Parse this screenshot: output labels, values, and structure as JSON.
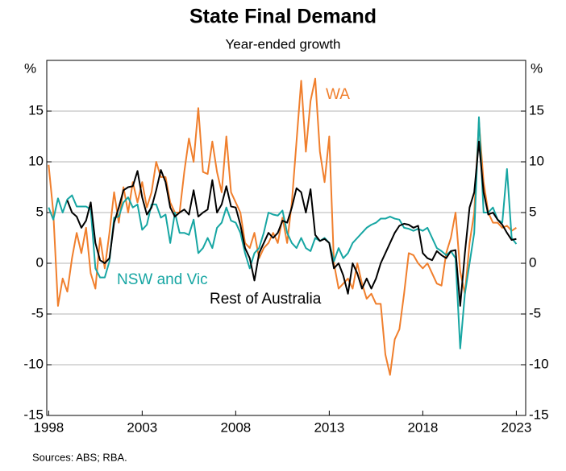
{
  "chart_data": {
    "type": "line",
    "title": "State Final Demand",
    "subtitle": "Year-ended growth",
    "y_unit": "%",
    "source": "Sources: ABS; RBA.",
    "xlim": [
      1997.9,
      2023.5
    ],
    "xticks": [
      1998,
      2003,
      2008,
      2013,
      2018,
      2023
    ],
    "ylim": [
      -15,
      20
    ],
    "yticks": [
      -15,
      -10,
      -5,
      0,
      5,
      10,
      15
    ],
    "grid": true,
    "x": [
      1998,
      1998.25,
      1998.5,
      1998.75,
      1999,
      1999.25,
      1999.5,
      1999.75,
      2000,
      2000.25,
      2000.5,
      2000.75,
      2001,
      2001.25,
      2001.5,
      2001.75,
      2002,
      2002.25,
      2002.5,
      2002.75,
      2003,
      2003.25,
      2003.5,
      2003.75,
      2004,
      2004.25,
      2004.5,
      2004.75,
      2005,
      2005.25,
      2005.5,
      2005.75,
      2006,
      2006.25,
      2006.5,
      2006.75,
      2007,
      2007.25,
      2007.5,
      2007.75,
      2008,
      2008.25,
      2008.5,
      2008.75,
      2009,
      2009.25,
      2009.5,
      2009.75,
      2010,
      2010.25,
      2010.5,
      2010.75,
      2011,
      2011.25,
      2011.5,
      2011.75,
      2012,
      2012.25,
      2012.5,
      2012.75,
      2013,
      2013.25,
      2013.5,
      2013.75,
      2014,
      2014.25,
      2014.5,
      2014.75,
      2015,
      2015.25,
      2015.5,
      2015.75,
      2016,
      2016.25,
      2016.5,
      2016.75,
      2017,
      2017.25,
      2017.5,
      2017.75,
      2018,
      2018.25,
      2018.5,
      2018.75,
      2019,
      2019.25,
      2019.5,
      2019.75,
      2020,
      2020.25,
      2020.5,
      2020.75,
      2021,
      2021.25,
      2021.5,
      2021.75,
      2022,
      2022.25,
      2022.5,
      2022.75,
      2023
    ],
    "series": [
      {
        "name": "WA",
        "color": "#f07f2d",
        "values": [
          9.7,
          5,
          -4.2,
          -1.5,
          -2.8,
          0.5,
          3,
          1,
          3.5,
          -1,
          -2.5,
          2.5,
          -0.5,
          3,
          7,
          4,
          7.5,
          5,
          8,
          6,
          8,
          5.5,
          7,
          10,
          8.5,
          8.5,
          6,
          5,
          5,
          9,
          12.3,
          10,
          15.3,
          9,
          8.8,
          12,
          9,
          7,
          12.5,
          7,
          6,
          5,
          2,
          1.5,
          3,
          0.5,
          1.5,
          2,
          3,
          2,
          4.5,
          2,
          6,
          12,
          18,
          11,
          16,
          18.2,
          11,
          8,
          12.5,
          0,
          -2.5,
          -2,
          -1.5,
          -2.5,
          0,
          -2,
          -3.5,
          -3,
          -4,
          -4,
          -9,
          -11,
          -7.5,
          -6.5,
          -3,
          1,
          0.8,
          0,
          -0.5,
          0,
          -1,
          -2,
          -2.2,
          1,
          2.5,
          5,
          -0.8,
          -3,
          2,
          5,
          14,
          8,
          5,
          4,
          4,
          3.5,
          3.7,
          3.2,
          3.5
        ]
      },
      {
        "name": "NSW and Vic",
        "color": "#17a6a3",
        "values": [
          5.5,
          4.3,
          6.4,
          5,
          6.3,
          6.7,
          5.6,
          5.6,
          5.6,
          5.3,
          -0.5,
          -1.4,
          -1.4,
          0.2,
          4.5,
          4.6,
          6,
          6.5,
          5.5,
          5.8,
          3.3,
          3.8,
          5.8,
          5.8,
          4.5,
          4.8,
          2,
          5,
          3,
          3,
          2.8,
          4.3,
          1,
          1.5,
          2.5,
          1.5,
          3.5,
          4,
          5.5,
          4.2,
          4,
          3,
          1,
          -0.5,
          1,
          1.5,
          3,
          5,
          4.8,
          4.7,
          5.2,
          3,
          2,
          1.5,
          2.5,
          1.5,
          1.2,
          2.5,
          2.2,
          2.5,
          2,
          0.2,
          1.5,
          0.5,
          1,
          2,
          2.5,
          3,
          3.5,
          3.8,
          4,
          4.4,
          4.4,
          4.6,
          4.4,
          4.3,
          3.5,
          3.4,
          3.2,
          3.4,
          3.2,
          3.5,
          2.5,
          1.5,
          1.2,
          0.8,
          1.2,
          0.5,
          -8.4,
          -3,
          0,
          3,
          14.4,
          5,
          5,
          5.5,
          4.3,
          4,
          9.3,
          2.5,
          1.9
        ]
      },
      {
        "name": "Rest of Australia",
        "color": "#000000",
        "values": [
          null,
          null,
          null,
          null,
          6.2,
          5,
          4.6,
          3.5,
          4.2,
          6,
          2,
          0.3,
          0,
          0.5,
          4,
          5.5,
          7.2,
          7.5,
          7.6,
          9.1,
          6.5,
          4.8,
          5.5,
          7.2,
          9.2,
          8,
          5.5,
          4.6,
          5,
          5.3,
          4.8,
          7.2,
          4.6,
          5,
          5.3,
          8.2,
          5,
          5.8,
          7.6,
          5.6,
          5.5,
          3.8,
          1.5,
          0.5,
          -1.7,
          1,
          2,
          3,
          2.5,
          3,
          4.2,
          4,
          5.5,
          7.4,
          7,
          5,
          7.3,
          2.8,
          2.2,
          2.4,
          2,
          -0.5,
          0,
          -1.2,
          -3,
          0,
          -1,
          -2.5,
          -1.5,
          -2.5,
          -1.5,
          0,
          1,
          2,
          3,
          3.7,
          3.9,
          3.8,
          3.5,
          3.7,
          1,
          0.5,
          0.3,
          1.2,
          0.8,
          0.5,
          1.2,
          1.3,
          -4.2,
          1,
          5.5,
          7,
          12,
          7,
          4.8,
          5,
          4.3,
          3.8,
          3,
          2.3,
          2.4
        ]
      }
    ]
  }
}
